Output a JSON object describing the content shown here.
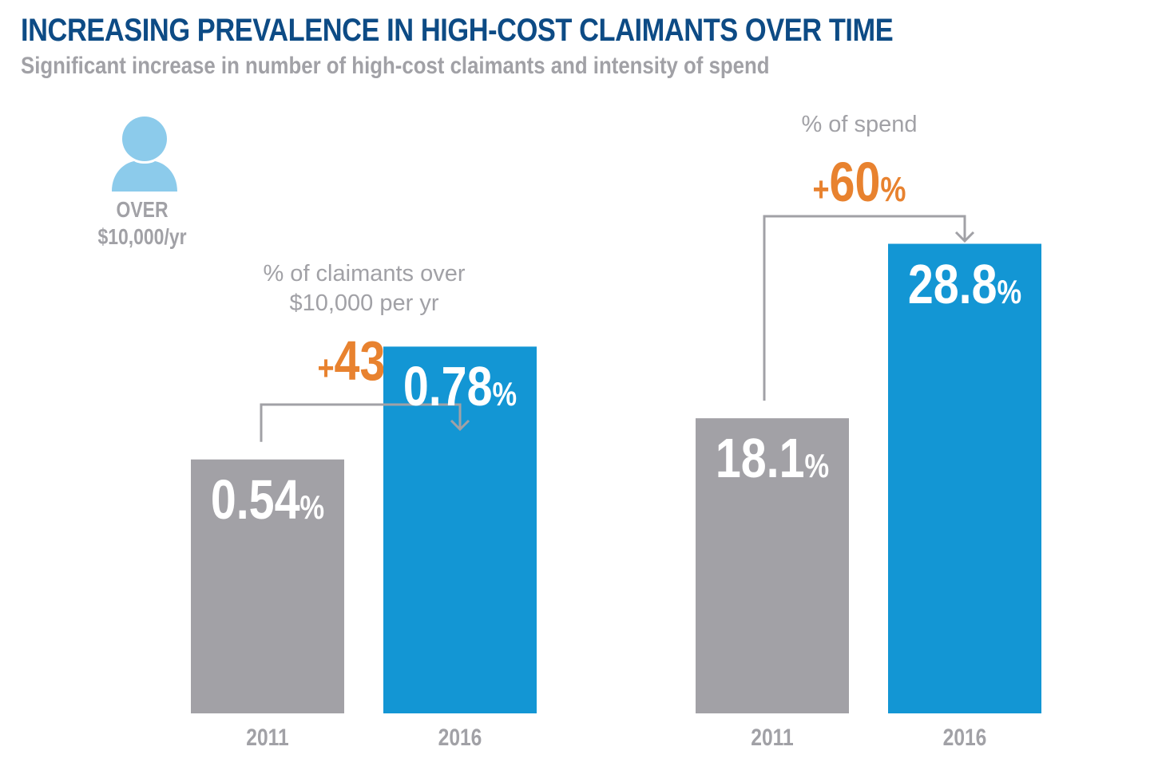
{
  "header": {
    "title": "INCREASING PREVALENCE IN HIGH-COST CLAIMANTS OVER TIME",
    "subtitle": "Significant increase in number of high-cost claimants and intensity of spend"
  },
  "icon": {
    "name": "person-icon",
    "line1": "OVER",
    "line2": "$10,000/yr"
  },
  "colors": {
    "title": "#0d4b85",
    "gray_text": "#a1a1a6",
    "bar_2011": "#a2a1a6",
    "bar_2016": "#1396d4",
    "delta": "#e8822f",
    "person": "#8ccbeb"
  },
  "chart_data": [
    {
      "type": "bar",
      "title": "% of claimants over $10,000 per yr",
      "title_line1": "% of claimants over",
      "title_line2": "$10,000 per yr",
      "categories": [
        "2011",
        "2016"
      ],
      "values": [
        0.54,
        0.78
      ],
      "value_labels": [
        "0.54",
        "0.78"
      ],
      "unit": "%",
      "change": {
        "sign": "+",
        "value": "43",
        "unit": "%"
      },
      "ylim": [
        0,
        1.12
      ]
    },
    {
      "type": "bar",
      "title": "% of spend",
      "categories": [
        "2011",
        "2016"
      ],
      "values": [
        18.1,
        28.8
      ],
      "value_labels": [
        "18.1",
        "28.8"
      ],
      "unit": "%",
      "change": {
        "sign": "+",
        "value": "60",
        "unit": "%"
      },
      "ylim": [
        0,
        32.3
      ]
    }
  ]
}
